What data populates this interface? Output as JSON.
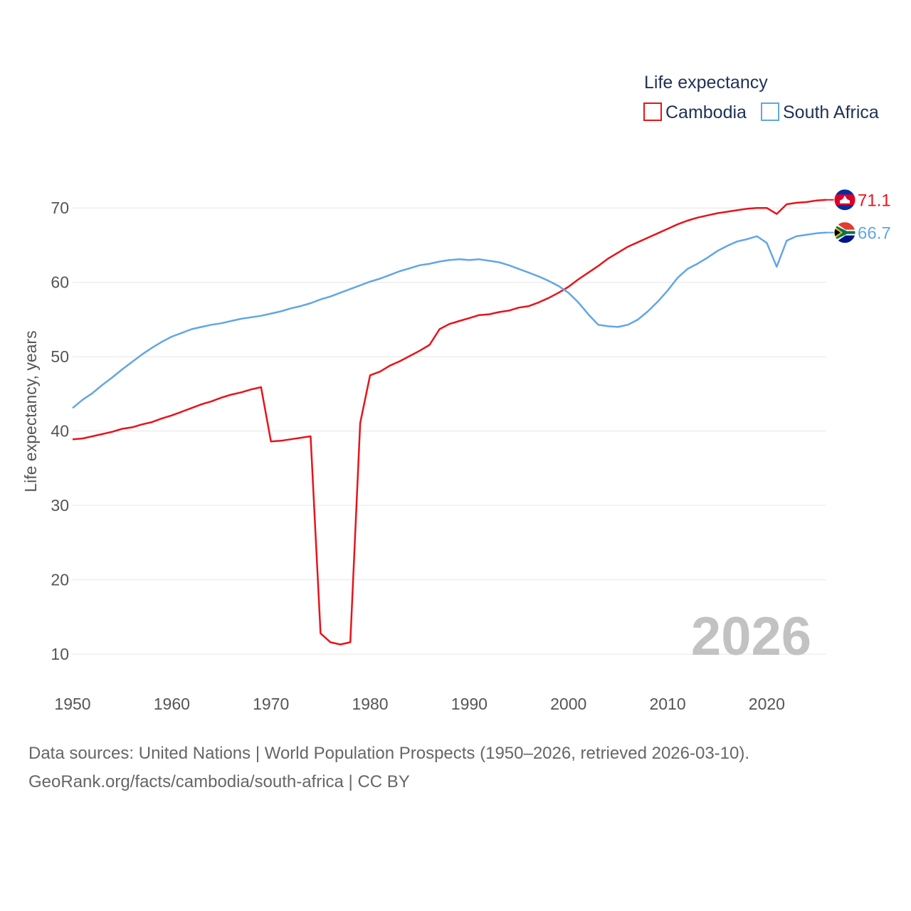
{
  "chart_data": {
    "type": "line",
    "title": "",
    "legend_title": "Life expectancy",
    "legend_position": "top-right",
    "ylabel": "Life expectancy, years",
    "xlabel": "",
    "xlim": [
      1950,
      2026
    ],
    "ylim": [
      8,
      75
    ],
    "x_ticks": [
      1950,
      1960,
      1970,
      1980,
      1990,
      2000,
      2010,
      2020
    ],
    "y_ticks": [
      10,
      20,
      30,
      40,
      50,
      60,
      70
    ],
    "grid": "horizontal",
    "current_year_label": "2026",
    "series": [
      {
        "name": "Cambodia",
        "color": "#e8131a",
        "flag_icon": "cambodia-flag-icon",
        "end_label": "71.1",
        "x": [
          1950,
          1951,
          1952,
          1953,
          1954,
          1955,
          1956,
          1957,
          1958,
          1959,
          1960,
          1961,
          1962,
          1963,
          1964,
          1965,
          1966,
          1967,
          1968,
          1969,
          1970,
          1971,
          1972,
          1973,
          1974,
          1975,
          1976,
          1977,
          1978,
          1979,
          1980,
          1981,
          1982,
          1983,
          1984,
          1985,
          1986,
          1987,
          1988,
          1989,
          1990,
          1991,
          1992,
          1993,
          1994,
          1995,
          1996,
          1997,
          1998,
          1999,
          2000,
          2001,
          2002,
          2003,
          2004,
          2005,
          2006,
          2007,
          2008,
          2009,
          2010,
          2011,
          2012,
          2013,
          2014,
          2015,
          2016,
          2017,
          2018,
          2019,
          2020,
          2021,
          2022,
          2023,
          2024,
          2025,
          2026
        ],
        "y": [
          38.9,
          39.0,
          39.3,
          39.6,
          39.9,
          40.3,
          40.5,
          40.9,
          41.2,
          41.7,
          42.1,
          42.6,
          43.1,
          43.6,
          44.0,
          44.5,
          44.9,
          45.2,
          45.6,
          45.9,
          38.6,
          38.7,
          38.9,
          39.1,
          39.3,
          12.8,
          11.6,
          11.3,
          11.6,
          41.1,
          47.5,
          48.0,
          48.8,
          49.4,
          50.1,
          50.8,
          51.6,
          53.7,
          54.4,
          54.8,
          55.2,
          55.6,
          55.7,
          56.0,
          56.2,
          56.6,
          56.8,
          57.3,
          57.9,
          58.6,
          59.4,
          60.4,
          61.3,
          62.2,
          63.2,
          64.0,
          64.8,
          65.4,
          66.0,
          66.6,
          67.2,
          67.8,
          68.3,
          68.7,
          69.0,
          69.3,
          69.5,
          69.7,
          69.9,
          70.0,
          70.0,
          69.2,
          70.5,
          70.7,
          70.8,
          71.0,
          71.1
        ]
      },
      {
        "name": "South Africa",
        "color": "#62a6e6",
        "flag_icon": "south-africa-flag-icon",
        "end_label": "66.7",
        "x": [
          1950,
          1951,
          1952,
          1953,
          1954,
          1955,
          1956,
          1957,
          1958,
          1959,
          1960,
          1961,
          1962,
          1963,
          1964,
          1965,
          1966,
          1967,
          1968,
          1969,
          1970,
          1971,
          1972,
          1973,
          1974,
          1975,
          1976,
          1977,
          1978,
          1979,
          1980,
          1981,
          1982,
          1983,
          1984,
          1985,
          1986,
          1987,
          1988,
          1989,
          1990,
          1991,
          1992,
          1993,
          1994,
          1995,
          1996,
          1997,
          1998,
          1999,
          2000,
          2001,
          2002,
          2003,
          2004,
          2005,
          2006,
          2007,
          2008,
          2009,
          2010,
          2011,
          2012,
          2013,
          2014,
          2015,
          2016,
          2017,
          2018,
          2019,
          2020,
          2021,
          2022,
          2023,
          2024,
          2025,
          2026
        ],
        "y": [
          43.1,
          44.2,
          45.1,
          46.2,
          47.2,
          48.3,
          49.3,
          50.3,
          51.2,
          52.0,
          52.7,
          53.2,
          53.7,
          54.0,
          54.3,
          54.5,
          54.8,
          55.1,
          55.3,
          55.5,
          55.8,
          56.1,
          56.5,
          56.8,
          57.2,
          57.7,
          58.1,
          58.6,
          59.1,
          59.6,
          60.1,
          60.5,
          61.0,
          61.5,
          61.9,
          62.3,
          62.5,
          62.8,
          63.0,
          63.1,
          63.0,
          63.1,
          62.9,
          62.7,
          62.3,
          61.8,
          61.3,
          60.8,
          60.2,
          59.5,
          58.6,
          57.3,
          55.7,
          54.3,
          54.1,
          54.0,
          54.3,
          55.0,
          56.1,
          57.4,
          58.9,
          60.6,
          61.8,
          62.5,
          63.3,
          64.2,
          64.9,
          65.5,
          65.8,
          66.2,
          65.3,
          62.1,
          65.6,
          66.2,
          66.4,
          66.6,
          66.7
        ]
      }
    ]
  },
  "footer": {
    "source_line": "Data sources: United Nations | World Population Prospects (1950–2026, retrieved 2026-03-10).",
    "credit_line": "GeoRank.org/facts/cambodia/south-africa | CC BY"
  }
}
